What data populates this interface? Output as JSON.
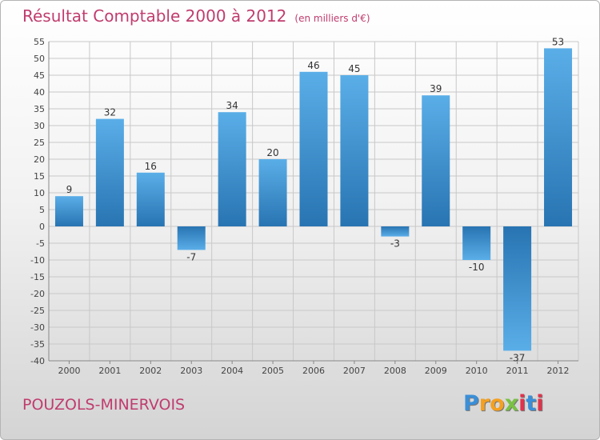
{
  "chart_data": {
    "type": "bar",
    "title": "Résultat Comptable 2000 à 2012",
    "unit": "(en milliers d'€)",
    "categories": [
      "2000",
      "2001",
      "2002",
      "2003",
      "2004",
      "2005",
      "2006",
      "2007",
      "2008",
      "2009",
      "2010",
      "2011",
      "2012"
    ],
    "values": [
      9,
      32,
      16,
      -7,
      34,
      20,
      46,
      45,
      -3,
      39,
      -10,
      -37,
      53
    ],
    "ylim": [
      -40,
      55
    ],
    "yticks": [
      55,
      50,
      45,
      40,
      35,
      30,
      25,
      20,
      15,
      10,
      5,
      0,
      -5,
      -10,
      -15,
      -20,
      -25,
      -30,
      -35,
      -40
    ],
    "grid": true,
    "colors": {
      "bar_dark": "#2874b2",
      "bar_light": "#5aaee8",
      "grid": "#c8c8c8",
      "title": "#c03c6e"
    }
  },
  "footer": {
    "town": "POUZOLS-MINERVOIS",
    "logo_letters": [
      "P",
      "r",
      "o",
      "x",
      "i",
      "t",
      "i"
    ],
    "logo_colors": [
      "#3a8fd8",
      "#f4a020",
      "#f4a020",
      "#7ac143",
      "#e0344c",
      "#3a8fd8",
      "#e0344c"
    ]
  }
}
